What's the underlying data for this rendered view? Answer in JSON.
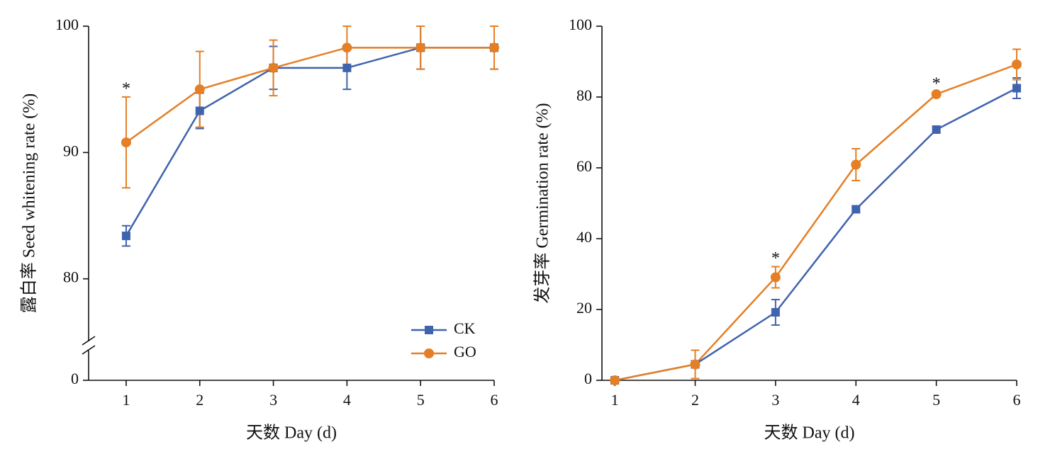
{
  "chart_data": [
    {
      "type": "line",
      "x_label": "天数 Day (d)",
      "y_label": "露白率 Seed whitening rate (%)",
      "x": [
        1,
        2,
        3,
        4,
        5,
        6
      ],
      "xlim": [
        0.49,
        6
      ],
      "xticks": [
        1,
        2,
        3,
        4,
        5,
        6
      ],
      "ylim": [
        74.6,
        100
      ],
      "yticks": [
        0,
        80,
        90,
        100
      ],
      "axis_break": true,
      "legend": "lower right",
      "series": [
        {
          "name": "CK",
          "color": "#3f63ad",
          "marker": "square",
          "values": [
            83.4,
            93.3,
            96.7,
            96.7,
            98.3,
            98.3
          ],
          "errors": [
            0.8,
            1.4,
            1.7,
            1.7,
            1.7,
            1.7
          ]
        },
        {
          "name": "GO",
          "color": "#e47f26",
          "marker": "circle",
          "values": [
            90.8,
            95,
            96.7,
            98.3,
            98.3,
            98.3
          ],
          "errors": [
            3.6,
            3,
            2.2,
            1.7,
            1.7,
            1.7
          ]
        }
      ],
      "annotations": [
        {
          "text": "*",
          "x": 1
        }
      ]
    },
    {
      "type": "line",
      "x_label": "天数 Day (d)",
      "y_label": "发芽率 Germination rate (%)",
      "x": [
        1,
        2,
        3,
        4,
        5,
        6
      ],
      "xlim": [
        0.84,
        6
      ],
      "xticks": [
        1,
        2,
        3,
        4,
        5,
        6
      ],
      "ylim": [
        0,
        100
      ],
      "yticks": [
        0,
        20,
        40,
        60,
        80,
        100
      ],
      "series": [
        {
          "color": "#3f63ad",
          "marker": "square",
          "values": [
            0,
            4.5,
            19.2,
            48.3,
            70.8,
            82.5
          ],
          "errors": [
            0,
            0,
            3.6,
            0.8,
            0.8,
            2.9
          ]
        },
        {
          "color": "#e47f26",
          "marker": "circle",
          "values": [
            0,
            4.5,
            29.1,
            60.9,
            80.8,
            89.2
          ],
          "errors": [
            0,
            4,
            3,
            4.5,
            0.6,
            4.3
          ]
        }
      ],
      "annotations": [
        {
          "text": "*",
          "x": 3
        },
        {
          "text": "*",
          "x": 5
        }
      ]
    }
  ]
}
